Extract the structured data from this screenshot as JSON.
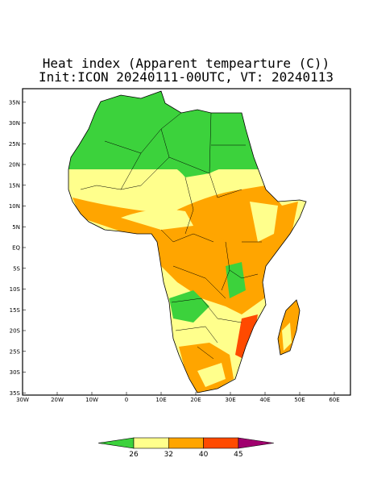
{
  "title": "Heat index (Apparent tempearture (C))",
  "subtitle": "Init:ICON 20240111-00UTC, VT: 20240113",
  "map": {
    "lon_ticks": [
      {
        "value": -30,
        "label": "30W"
      },
      {
        "value": -20,
        "label": "20W"
      },
      {
        "value": -10,
        "label": "10W"
      },
      0,
      {
        "value": 10,
        "label": "10E"
      },
      {
        "value": 20,
        "label": "20E"
      },
      {
        "value": 30,
        "label": "30E"
      },
      {
        "value": 40,
        "label": "40E"
      },
      {
        "value": 50,
        "label": "50E"
      },
      {
        "value": 60,
        "label": "60E"
      }
    ],
    "lat_ticks": [
      {
        "value": 35,
        "label": "35N"
      },
      {
        "value": 30,
        "label": "30N"
      },
      {
        "value": 25,
        "label": "25N"
      },
      {
        "value": 20,
        "label": "20N"
      },
      {
        "value": 15,
        "label": "15N"
      },
      {
        "value": 10,
        "label": "10N"
      },
      {
        "value": 5,
        "label": "5N"
      },
      {
        "value": 0,
        "label": "EQ"
      },
      {
        "value": -5,
        "label": "5S"
      },
      {
        "value": -10,
        "label": "10S"
      },
      {
        "value": -15,
        "label": "15S"
      },
      {
        "value": -20,
        "label": "20S"
      },
      {
        "value": -25,
        "label": "25S"
      },
      {
        "value": -30,
        "label": "30S"
      },
      {
        "value": -35,
        "label": "35S"
      }
    ]
  },
  "colorbar": {
    "levels": [
      26,
      32,
      40,
      45
    ],
    "colors": [
      "#3cd23c",
      "#ffff8c",
      "#ffa500",
      "#ff4a00",
      "#a0006e"
    ]
  }
}
